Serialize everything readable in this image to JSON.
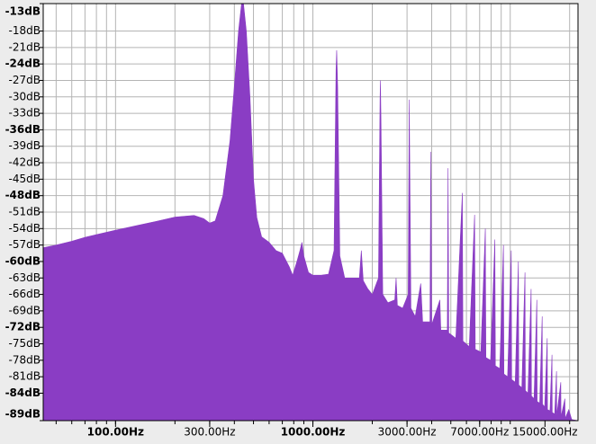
{
  "chart_data": {
    "type": "area",
    "color": "#8a3dc4",
    "log_x": true,
    "grid": true,
    "xlim": [
      43,
      22050
    ],
    "ylim": [
      -89,
      -13
    ],
    "xticks": [
      {
        "value": 100,
        "label": "100.00Hz",
        "bold": true
      },
      {
        "value": 300,
        "label": "300.00Hz"
      },
      {
        "value": 1000,
        "label": "1000.00Hz",
        "bold": true
      },
      {
        "value": 3000,
        "label": "3000.00Hz"
      },
      {
        "value": 7000,
        "label": "7000.00Hz"
      },
      {
        "value": 15000,
        "label": "15000.00Hz"
      }
    ],
    "xgrid": [
      50,
      60,
      70,
      80,
      90,
      100,
      200,
      300,
      400,
      500,
      600,
      700,
      800,
      900,
      1000,
      2000,
      3000,
      4000,
      5000,
      6000,
      7000,
      8000,
      9000,
      10000,
      20000
    ],
    "yticks": [
      {
        "value": -13,
        "label": "-13dB",
        "bold": true
      },
      {
        "value": -18,
        "label": "-18dB"
      },
      {
        "value": -21,
        "label": "-21dB"
      },
      {
        "value": -24,
        "label": "-24dB",
        "bold": true
      },
      {
        "value": -27,
        "label": "-27dB"
      },
      {
        "value": -30,
        "label": "-30dB"
      },
      {
        "value": -33,
        "label": "-33dB"
      },
      {
        "value": -36,
        "label": "-36dB",
        "bold": true
      },
      {
        "value": -39,
        "label": "-39dB"
      },
      {
        "value": -42,
        "label": "-42dB"
      },
      {
        "value": -45,
        "label": "-45dB"
      },
      {
        "value": -48,
        "label": "-48dB",
        "bold": true
      },
      {
        "value": -51,
        "label": "-51dB"
      },
      {
        "value": -54,
        "label": "-54dB"
      },
      {
        "value": -57,
        "label": "-57dB"
      },
      {
        "value": -60,
        "label": "-60dB",
        "bold": true
      },
      {
        "value": -63,
        "label": "-63dB"
      },
      {
        "value": -66,
        "label": "-66dB"
      },
      {
        "value": -69,
        "label": "-69dB"
      },
      {
        "value": -72,
        "label": "-72dB",
        "bold": true
      },
      {
        "value": -75,
        "label": "-75dB"
      },
      {
        "value": -78,
        "label": "-78dB"
      },
      {
        "value": -81,
        "label": "-81dB"
      },
      {
        "value": -84,
        "label": "-84dB",
        "bold": true
      },
      {
        "value": -89,
        "label": "-89dB",
        "bold": true
      }
    ],
    "x": [
      43,
      50,
      60,
      70,
      80,
      100,
      130,
      160,
      200,
      250,
      280,
      300,
      320,
      350,
      380,
      400,
      420,
      435,
      445,
      460,
      480,
      500,
      520,
      550,
      600,
      650,
      700,
      760,
      790,
      830,
      860,
      880,
      900,
      950,
      1000,
      1100,
      1200,
      1280,
      1310,
      1320,
      1335,
      1370,
      1450,
      1600,
      1720,
      1760,
      1800,
      1900,
      2000,
      2150,
      2190,
      2200,
      2215,
      2260,
      2400,
      2600,
      2640,
      2680,
      2850,
      3040,
      3075,
      3080,
      3090,
      3140,
      3300,
      3520,
      3600,
      3920,
      3960,
      4000,
      4400,
      4450,
      4800,
      4840,
      4880,
      5300,
      5720,
      5760,
      6200,
      6600,
      6650,
      7100,
      7480,
      7530,
      7950,
      8360,
      8410,
      8850,
      9240,
      9290,
      9700,
      10120,
      10170,
      10600,
      11000,
      11050,
      11450,
      11880,
      11930,
      12300,
      12760,
      12810,
      13200,
      13640,
      13690,
      14100,
      14520,
      14570,
      14950,
      15400,
      15450,
      15900,
      16280,
      16330,
      16800,
      17160,
      17210,
      18040,
      18090,
      18920,
      18970,
      19800,
      20500,
      22050
    ],
    "values": [
      -57.5,
      -57,
      -56.3,
      -55.6,
      -55.1,
      -54.3,
      -53.4,
      -52.7,
      -51.9,
      -51.6,
      -52.2,
      -53,
      -52.6,
      -48,
      -38,
      -28,
      -18,
      -13,
      -13,
      -18,
      -30,
      -45,
      -52,
      -55.5,
      -56.5,
      -58,
      -58.5,
      -61,
      -62.5,
      -60,
      -58,
      -56.5,
      -59,
      -62,
      -62.5,
      -62.5,
      -62.3,
      -58,
      -25,
      -21.5,
      -28,
      -59,
      -63,
      -63,
      -63,
      -58,
      -63.5,
      -65,
      -66,
      -63,
      -30,
      -27,
      -35,
      -66,
      -67.5,
      -67,
      -63,
      -68,
      -68.5,
      -66,
      -33,
      -30.5,
      -38,
      -68.5,
      -70,
      -64,
      -71,
      -71,
      -40,
      -71.5,
      -67,
      -72.5,
      -72.5,
      -43,
      -73,
      -74,
      -47.5,
      -74.5,
      -75.5,
      -51.5,
      -76,
      -76.5,
      -54,
      -77.5,
      -78,
      -56,
      -79,
      -79.5,
      -57,
      -80.5,
      -81,
      -58,
      -81.5,
      -82,
      -60,
      -82.5,
      -83,
      -62,
      -83.5,
      -84,
      -65,
      -84.5,
      -85,
      -67,
      -85.5,
      -85.8,
      -70,
      -86,
      -86.5,
      -74,
      -87,
      -87.2,
      -77,
      -87.5,
      -87.8,
      -80,
      -88,
      -82,
      -88.3,
      -85,
      -88.6,
      -87,
      -88.8,
      -89
    ]
  }
}
